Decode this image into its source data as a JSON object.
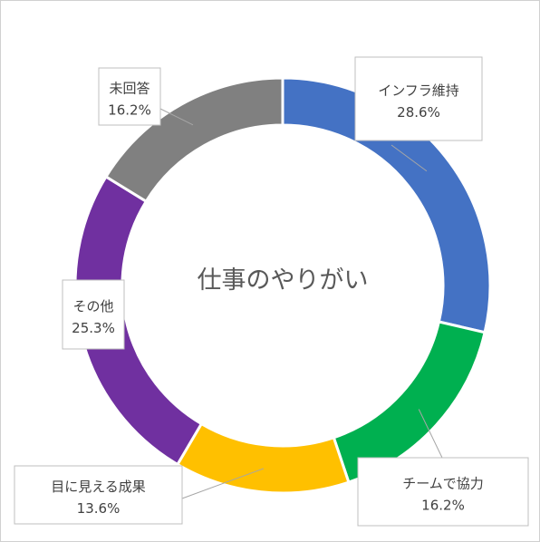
{
  "chart_data": {
    "type": "pie",
    "title": "仕事のやりがい",
    "categories": [
      "インフラ維持",
      "チームで協力",
      "目に見える成果",
      "その他",
      "未回答"
    ],
    "values": [
      28.6,
      16.2,
      13.6,
      25.3,
      16.2
    ],
    "value_labels": [
      "28.6%",
      "16.2%",
      "13.6%",
      "25.3%",
      "16.2%"
    ],
    "colors": [
      "#4472C4",
      "#00B050",
      "#FFC000",
      "#7030A0",
      "#808080"
    ],
    "legend": "none"
  }
}
